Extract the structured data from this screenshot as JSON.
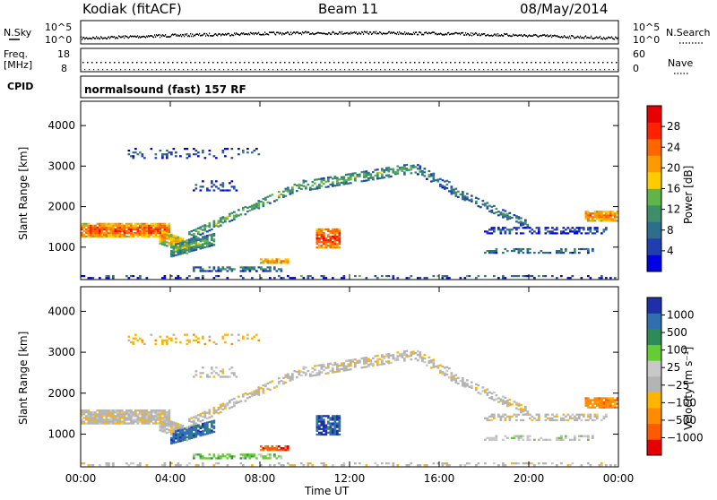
{
  "header": {
    "station": "Kodiak (fitACF)",
    "beam": "Beam 11",
    "date": "08/May/2014"
  },
  "top_panels": {
    "nsky_label": "N.Sky",
    "nsearch_label": "N.Search",
    "noise_ticks_left": [
      "10^5",
      "10^0"
    ],
    "noise_ticks_right": [
      "10^5",
      "10^0"
    ],
    "freq_label_1": "Freq.",
    "freq_label_2": "[MHz]",
    "freq_ticks": [
      "18",
      "8"
    ],
    "nave_label": "Nave",
    "nave_ticks": [
      "60",
      "0"
    ],
    "cpid_label": "CPID",
    "cpid_value": "normalsound (fast) 157 RF"
  },
  "colors": {
    "power_scale": [
      "#0000e6",
      "#1f3fb0",
      "#2d6f8a",
      "#3c8f6a",
      "#5fb54a",
      "#ffcc00",
      "#ff9900",
      "#ff6600",
      "#ff2200",
      "#e60000"
    ],
    "velocity_scale": [
      "#e60000",
      "#ff5a00",
      "#ff8c00",
      "#ffb400",
      "#b4b4b4",
      "#c8c8c8",
      "#66cc33",
      "#2e8b57",
      "#2f6fb0",
      "#1f2fa8"
    ]
  },
  "chart_data": [
    {
      "type": "heatmap",
      "name": "Power",
      "ylabel": "Slant Range [km]",
      "xlabel": "Time UT",
      "x_ticks": [
        "00:00",
        "04:00",
        "08:00",
        "12:00",
        "16:00",
        "20:00",
        "00:00"
      ],
      "xlim_hours": [
        0,
        24
      ],
      "y_ticks": [
        1000,
        2000,
        3000,
        4000
      ],
      "ylim": [
        200,
        4600
      ],
      "colorbar": {
        "label": "Power [dB]",
        "ticks": [
          "28",
          "24",
          "20",
          "16",
          "12",
          "8",
          "4"
        ]
      }
    },
    {
      "type": "heatmap",
      "name": "Velocity",
      "ylabel": "Slant Range [km]",
      "xlabel": "Time UT",
      "x_ticks": [
        "00:00",
        "04:00",
        "08:00",
        "12:00",
        "16:00",
        "20:00",
        "00:00"
      ],
      "xlim_hours": [
        0,
        24
      ],
      "y_ticks": [
        1000,
        2000,
        3000,
        4000
      ],
      "ylim": [
        200,
        4600
      ],
      "colorbar": {
        "label": "Velocity [m s⁻¹]",
        "ticks": [
          "1000",
          "500",
          "100",
          "25",
          "−25",
          "−100",
          "−500",
          "−1000"
        ]
      }
    }
  ]
}
